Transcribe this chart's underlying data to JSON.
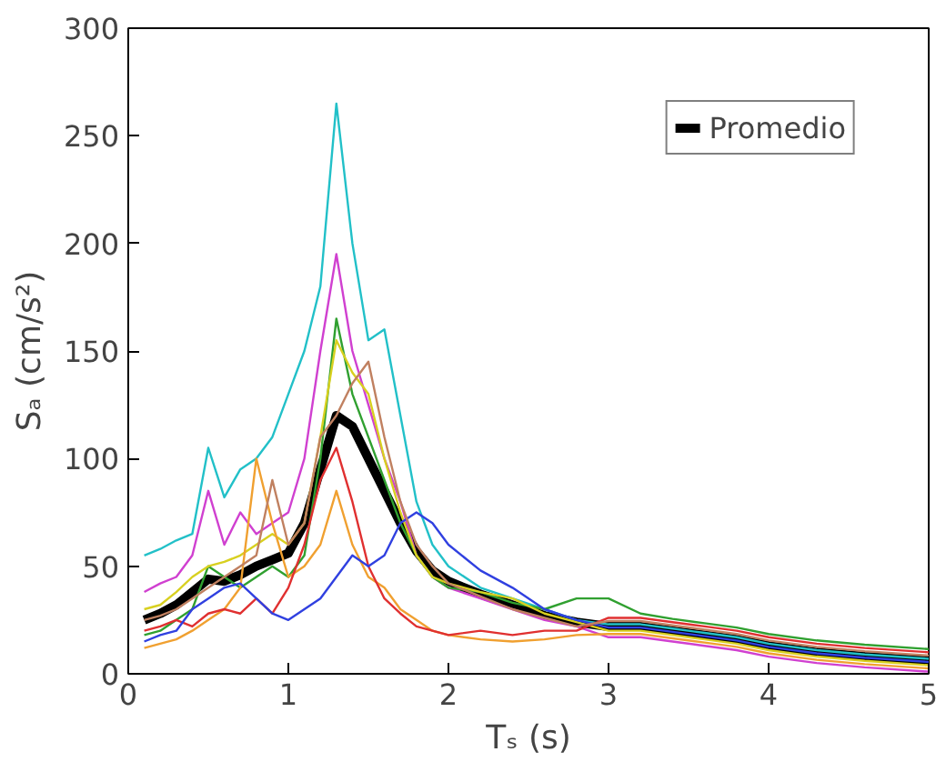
{
  "chart_data": {
    "type": "line",
    "xlabel": "Tₛ (s)",
    "ylabel": "Sₐ (cm/s²)",
    "x": [
      0.1,
      0.2,
      0.3,
      0.4,
      0.5,
      0.6,
      0.7,
      0.8,
      0.9,
      1.0,
      1.1,
      1.2,
      1.3,
      1.4,
      1.5,
      1.6,
      1.7,
      1.8,
      1.9,
      2.0,
      2.2,
      2.4,
      2.6,
      2.8,
      3.0,
      3.2,
      3.4,
      3.6,
      3.8,
      4.0,
      4.3,
      4.6,
      5.0
    ],
    "series": [
      {
        "name": "Promedio",
        "color": "#000000",
        "values": [
          25,
          28,
          32,
          38,
          44,
          43,
          46,
          50,
          53,
          56,
          70,
          95,
          120,
          115,
          100,
          85,
          70,
          57,
          48,
          43,
          37,
          32,
          27,
          24,
          22,
          22,
          20,
          18,
          16,
          13,
          10,
          8,
          6
        ]
      },
      {
        "color": "#22c0c8",
        "values": [
          55,
          58,
          62,
          65,
          105,
          82,
          95,
          100,
          110,
          130,
          150,
          180,
          265,
          200,
          155,
          160,
          120,
          80,
          60,
          50,
          40,
          35,
          30,
          25,
          23,
          23,
          21,
          19,
          17,
          14,
          11,
          9,
          7
        ]
      },
      {
        "color": "#d040d0",
        "values": [
          38,
          42,
          45,
          55,
          85,
          60,
          75,
          65,
          70,
          75,
          100,
          150,
          195,
          150,
          125,
          100,
          80,
          55,
          45,
          40,
          35,
          30,
          25,
          22,
          17,
          17,
          15,
          13,
          11,
          8,
          5,
          3,
          1
        ]
      },
      {
        "color": "#30a030",
        "values": [
          18,
          20,
          25,
          30,
          50,
          45,
          40,
          45,
          50,
          45,
          55,
          100,
          165,
          130,
          110,
          90,
          70,
          55,
          45,
          40,
          38,
          33,
          30,
          35,
          35,
          28,
          25.5,
          23.5,
          21.5,
          18.5,
          15.5,
          13.5,
          11.5
        ]
      },
      {
        "color": "#d8d020",
        "values": [
          30,
          32,
          38,
          45,
          50,
          52,
          55,
          60,
          65,
          60,
          70,
          110,
          155,
          140,
          130,
          100,
          75,
          55,
          45,
          42,
          38,
          35,
          28,
          24,
          20,
          20,
          18,
          16,
          14,
          11,
          8,
          6,
          4
        ]
      },
      {
        "color": "#f0a030",
        "values": [
          12,
          14,
          16,
          20,
          25,
          30,
          40,
          100,
          70,
          45,
          50,
          60,
          85,
          60,
          45,
          40,
          30,
          25,
          20,
          18,
          16,
          15,
          16,
          18,
          18.5,
          18.5,
          16.5,
          14.5,
          12.5,
          9.5,
          6.5,
          4.5,
          2.5
        ]
      },
      {
        "color": "#e03030",
        "values": [
          20,
          22,
          25,
          22,
          28,
          30,
          28,
          35,
          28,
          40,
          60,
          90,
          105,
          80,
          50,
          35,
          28,
          22,
          20,
          18,
          20,
          18,
          20,
          20,
          26,
          26,
          24,
          22,
          20,
          17,
          14,
          12,
          10
        ]
      },
      {
        "color": "#3040e0",
        "values": [
          15,
          18,
          20,
          30,
          35,
          40,
          42,
          35,
          28,
          25,
          30,
          35,
          45,
          55,
          50,
          55,
          70,
          75,
          70,
          60,
          48,
          40,
          30,
          25,
          21.5,
          21.5,
          19.5,
          17.5,
          15.5,
          12.5,
          9.5,
          7.5,
          5.5
        ]
      },
      {
        "color": "#c08060",
        "values": [
          25,
          27,
          30,
          35,
          40,
          45,
          50,
          55,
          90,
          60,
          70,
          110,
          120,
          135,
          145,
          110,
          80,
          60,
          50,
          42,
          36,
          30,
          26,
          22,
          24.5,
          24.5,
          22.5,
          20.5,
          18.5,
          15.5,
          12.5,
          10.5,
          8.5
        ]
      }
    ],
    "xlim": [
      0,
      5
    ],
    "ylim": [
      0,
      300
    ],
    "xticks": [
      0,
      1,
      2,
      3,
      4,
      5
    ],
    "yticks": [
      0,
      50,
      100,
      150,
      200,
      250,
      300
    ],
    "grid": false,
    "legend": "top right",
    "marker": "none",
    "line_style": "solid"
  }
}
